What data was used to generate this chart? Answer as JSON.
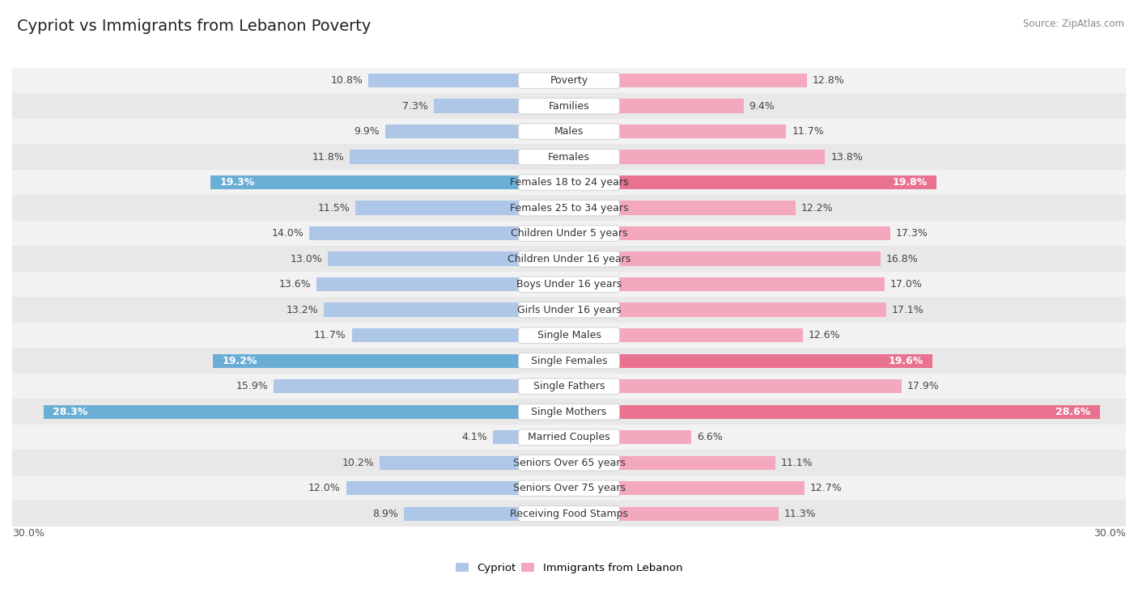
{
  "title": "Cypriot vs Immigrants from Lebanon Poverty",
  "source": "Source: ZipAtlas.com",
  "categories": [
    "Poverty",
    "Families",
    "Males",
    "Females",
    "Females 18 to 24 years",
    "Females 25 to 34 years",
    "Children Under 5 years",
    "Children Under 16 years",
    "Boys Under 16 years",
    "Girls Under 16 years",
    "Single Males",
    "Single Females",
    "Single Fathers",
    "Single Mothers",
    "Married Couples",
    "Seniors Over 65 years",
    "Seniors Over 75 years",
    "Receiving Food Stamps"
  ],
  "cypriot": [
    10.8,
    7.3,
    9.9,
    11.8,
    19.3,
    11.5,
    14.0,
    13.0,
    13.6,
    13.2,
    11.7,
    19.2,
    15.9,
    28.3,
    4.1,
    10.2,
    12.0,
    8.9
  ],
  "lebanon": [
    12.8,
    9.4,
    11.7,
    13.8,
    19.8,
    12.2,
    17.3,
    16.8,
    17.0,
    17.1,
    12.6,
    19.6,
    17.9,
    28.6,
    6.6,
    11.1,
    12.7,
    11.3
  ],
  "cypriot_color_normal": "#aec6e8",
  "cypriot_color_highlight": "#6aaed6",
  "lebanon_color_normal": "#f4a8be",
  "lebanon_color_highlight": "#e8728f",
  "highlight_rows": [
    4,
    11,
    13
  ],
  "axis_limit": 30.0,
  "row_bg_even": "#f2f2f2",
  "row_bg_odd": "#e8e8e8",
  "label_fontsize": 9,
  "value_fontsize": 9,
  "title_fontsize": 14,
  "legend_labels": [
    "Cypriot",
    "Immigrants from Lebanon"
  ]
}
